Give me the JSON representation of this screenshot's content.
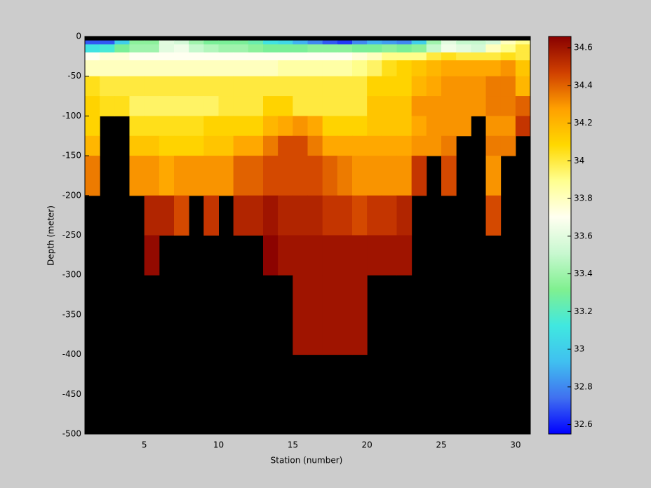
{
  "chart_data": {
    "type": "heatmap",
    "xlabel": "Station (number)",
    "ylabel": "Depth (meter)",
    "x": [
      1,
      2,
      3,
      4,
      5,
      6,
      7,
      8,
      9,
      10,
      11,
      12,
      13,
      14,
      15,
      16,
      17,
      18,
      19,
      20,
      21,
      22,
      23,
      24,
      25,
      26,
      27,
      28,
      29,
      30,
      31
    ],
    "y": [
      0,
      -5,
      -10,
      -20,
      -30,
      -50,
      -75,
      -100,
      -125,
      -150,
      -200,
      -250,
      -300,
      -400,
      -500
    ],
    "values": [
      [
        null,
        null,
        null,
        null,
        null,
        null,
        null,
        null,
        null,
        null,
        null,
        null,
        null,
        null,
        null,
        null,
        null,
        null,
        null,
        null,
        null,
        null,
        null,
        null,
        null,
        null,
        null,
        null,
        null,
        null
      ],
      [
        32.7,
        32.7,
        33.0,
        33.35,
        33.35,
        33.6,
        33.55,
        33.4,
        33.3,
        33.3,
        33.3,
        33.25,
        33.1,
        33.05,
        32.9,
        32.8,
        32.7,
        32.65,
        32.8,
        32.9,
        32.85,
        32.8,
        33.0,
        33.4,
        33.6,
        33.5,
        33.5,
        33.55,
        33.8,
        33.9
      ],
      [
        33.1,
        33.15,
        33.3,
        33.4,
        33.4,
        33.6,
        33.65,
        33.5,
        33.45,
        33.4,
        33.4,
        33.35,
        33.3,
        33.3,
        33.3,
        33.35,
        33.35,
        33.35,
        33.3,
        33.3,
        33.35,
        33.3,
        33.35,
        33.5,
        33.65,
        33.6,
        33.55,
        33.8,
        33.9,
        34.0
      ],
      [
        33.7,
        33.75,
        33.75,
        33.7,
        33.7,
        33.7,
        33.7,
        33.7,
        33.7,
        33.7,
        33.7,
        33.7,
        33.7,
        33.7,
        33.7,
        33.7,
        33.7,
        33.7,
        33.75,
        33.8,
        33.9,
        33.9,
        33.9,
        34.0,
        34.05,
        34.0,
        34.0,
        34.0,
        34.05,
        34.0
      ],
      [
        33.8,
        33.8,
        33.8,
        33.8,
        33.8,
        33.8,
        33.8,
        33.8,
        33.8,
        33.8,
        33.8,
        33.8,
        33.8,
        33.85,
        33.85,
        33.85,
        33.85,
        33.85,
        33.9,
        33.95,
        34.05,
        34.1,
        34.15,
        34.2,
        34.25,
        34.25,
        34.25,
        34.25,
        34.3,
        34.15
      ],
      [
        34.05,
        34.0,
        34.0,
        34.0,
        34.0,
        34.0,
        34.0,
        34.0,
        34.0,
        34.0,
        34.0,
        34.0,
        34.0,
        34.0,
        34.0,
        34.0,
        34.0,
        34.0,
        34.0,
        34.1,
        34.1,
        34.1,
        34.2,
        34.25,
        34.3,
        34.3,
        34.3,
        34.35,
        34.35,
        34.2
      ],
      [
        34.1,
        34.05,
        34.05,
        33.95,
        33.95,
        33.95,
        33.95,
        33.95,
        33.95,
        34.0,
        34.0,
        34.0,
        34.1,
        34.1,
        34.0,
        34.0,
        34.0,
        34.0,
        34.0,
        34.15,
        34.15,
        34.15,
        34.3,
        34.3,
        34.3,
        34.3,
        34.3,
        34.35,
        34.35,
        34.4
      ],
      [
        34.1,
        null,
        null,
        34.05,
        34.05,
        34.05,
        34.05,
        34.05,
        34.1,
        34.1,
        34.1,
        34.1,
        34.2,
        34.25,
        34.3,
        34.25,
        34.1,
        34.1,
        34.1,
        34.15,
        34.15,
        34.15,
        34.25,
        34.3,
        34.3,
        34.3,
        null,
        34.3,
        34.3,
        34.5
      ],
      [
        34.2,
        null,
        null,
        34.15,
        34.15,
        34.1,
        34.1,
        34.1,
        34.15,
        34.15,
        34.25,
        34.25,
        34.35,
        34.45,
        34.45,
        34.35,
        34.25,
        34.25,
        34.25,
        34.25,
        34.25,
        34.25,
        34.3,
        34.3,
        34.35,
        null,
        null,
        34.35,
        34.35,
        null
      ],
      [
        34.35,
        null,
        null,
        34.3,
        34.3,
        34.25,
        34.3,
        34.3,
        34.3,
        34.3,
        34.4,
        34.4,
        34.45,
        34.45,
        34.45,
        34.45,
        34.4,
        34.35,
        34.3,
        34.3,
        34.3,
        34.3,
        34.5,
        null,
        34.45,
        null,
        null,
        34.3,
        null,
        null
      ],
      [
        null,
        null,
        null,
        null,
        34.55,
        34.55,
        34.45,
        null,
        34.5,
        null,
        34.55,
        34.55,
        34.6,
        34.55,
        34.55,
        34.55,
        34.5,
        34.5,
        34.45,
        34.5,
        34.5,
        34.55,
        null,
        null,
        null,
        null,
        null,
        34.45,
        null,
        null
      ],
      [
        null,
        null,
        null,
        null,
        34.63,
        null,
        null,
        null,
        null,
        null,
        null,
        null,
        34.65,
        34.6,
        34.6,
        34.6,
        34.6,
        34.6,
        34.6,
        34.6,
        34.6,
        34.6,
        null,
        null,
        null,
        null,
        null,
        null,
        null,
        null
      ],
      [
        null,
        null,
        null,
        null,
        null,
        null,
        null,
        null,
        null,
        null,
        null,
        null,
        null,
        null,
        34.6,
        34.6,
        34.6,
        34.6,
        34.6,
        null,
        null,
        null,
        null,
        null,
        null,
        null,
        null,
        null,
        null,
        null
      ],
      [
        null,
        null,
        null,
        null,
        null,
        null,
        null,
        null,
        null,
        null,
        null,
        null,
        null,
        null,
        null,
        null,
        null,
        null,
        null,
        null,
        null,
        null,
        null,
        null,
        null,
        null,
        null,
        null,
        null,
        null
      ]
    ],
    "xlim": [
      1,
      31
    ],
    "xticks": [
      5,
      10,
      15,
      20,
      25,
      30
    ],
    "ylim": [
      -500,
      0
    ],
    "yticks": [
      -500,
      -450,
      -400,
      -350,
      -300,
      -250,
      -200,
      -150,
      -100,
      -50,
      0
    ],
    "clim": [
      32.55,
      34.66
    ],
    "cticks": [
      32.6,
      32.8,
      33,
      33.2,
      33.4,
      33.6,
      33.8,
      34,
      34.2,
      34.4,
      34.6
    ],
    "colormap": [
      "#0000ff",
      "#4070f0",
      "#40c0f0",
      "#40e8e0",
      "#80f090",
      "#c8f8d0",
      "#fffff0",
      "#ffff90",
      "#ffd800",
      "#ffa000",
      "#d04000",
      "#880000"
    ],
    "missing_color": "#000000",
    "background": "#cccccc"
  }
}
